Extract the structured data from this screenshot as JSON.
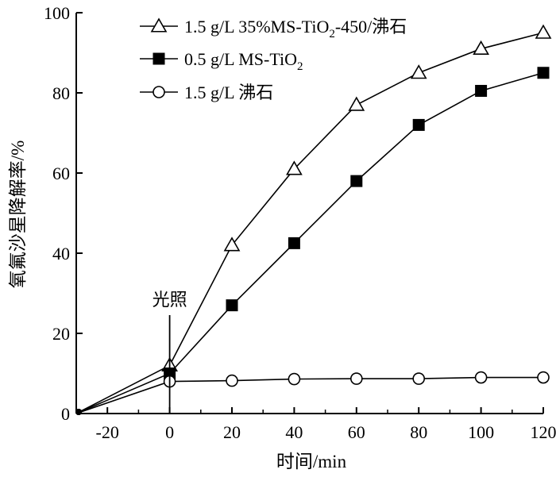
{
  "chart_data": {
    "type": "line",
    "xlabel": "时间/min",
    "ylabel": "氧氟沙星降解率/%",
    "xlim": [
      -30,
      120
    ],
    "ylim": [
      0,
      100
    ],
    "xticks": [
      -20,
      0,
      20,
      40,
      60,
      80,
      100,
      120
    ],
    "yticks": [
      0,
      20,
      40,
      60,
      80,
      100
    ],
    "grid": false,
    "legend_position": "top-left",
    "annotation": {
      "text": "光照",
      "x": 0
    },
    "series": [
      {
        "name": "1.5 g/L 35%MS-TiO2-450/沸石",
        "legend_parts": [
          "1.5 g/L 35%MS-TiO",
          "2",
          "-450/沸石"
        ],
        "marker": "triangle-open",
        "x": [
          -30,
          0,
          20,
          40,
          60,
          80,
          100,
          120
        ],
        "y": [
          0,
          12,
          42,
          61,
          77,
          85,
          91,
          95
        ]
      },
      {
        "name": "0.5 g/L MS-TiO2",
        "legend_parts": [
          "0.5 g/L MS-TiO",
          "2",
          ""
        ],
        "marker": "square-filled",
        "x": [
          -30,
          0,
          20,
          40,
          60,
          80,
          100,
          120
        ],
        "y": [
          0,
          10,
          27,
          42.5,
          58,
          72,
          80.5,
          85
        ]
      },
      {
        "name": "1.5 g/L 沸石",
        "legend_parts": [
          "1.5 g/L 沸石",
          "",
          ""
        ],
        "marker": "circle-open",
        "x": [
          -30,
          0,
          20,
          40,
          60,
          80,
          100,
          120
        ],
        "y": [
          0,
          8,
          8.2,
          8.6,
          8.7,
          8.7,
          9,
          9
        ]
      }
    ]
  }
}
